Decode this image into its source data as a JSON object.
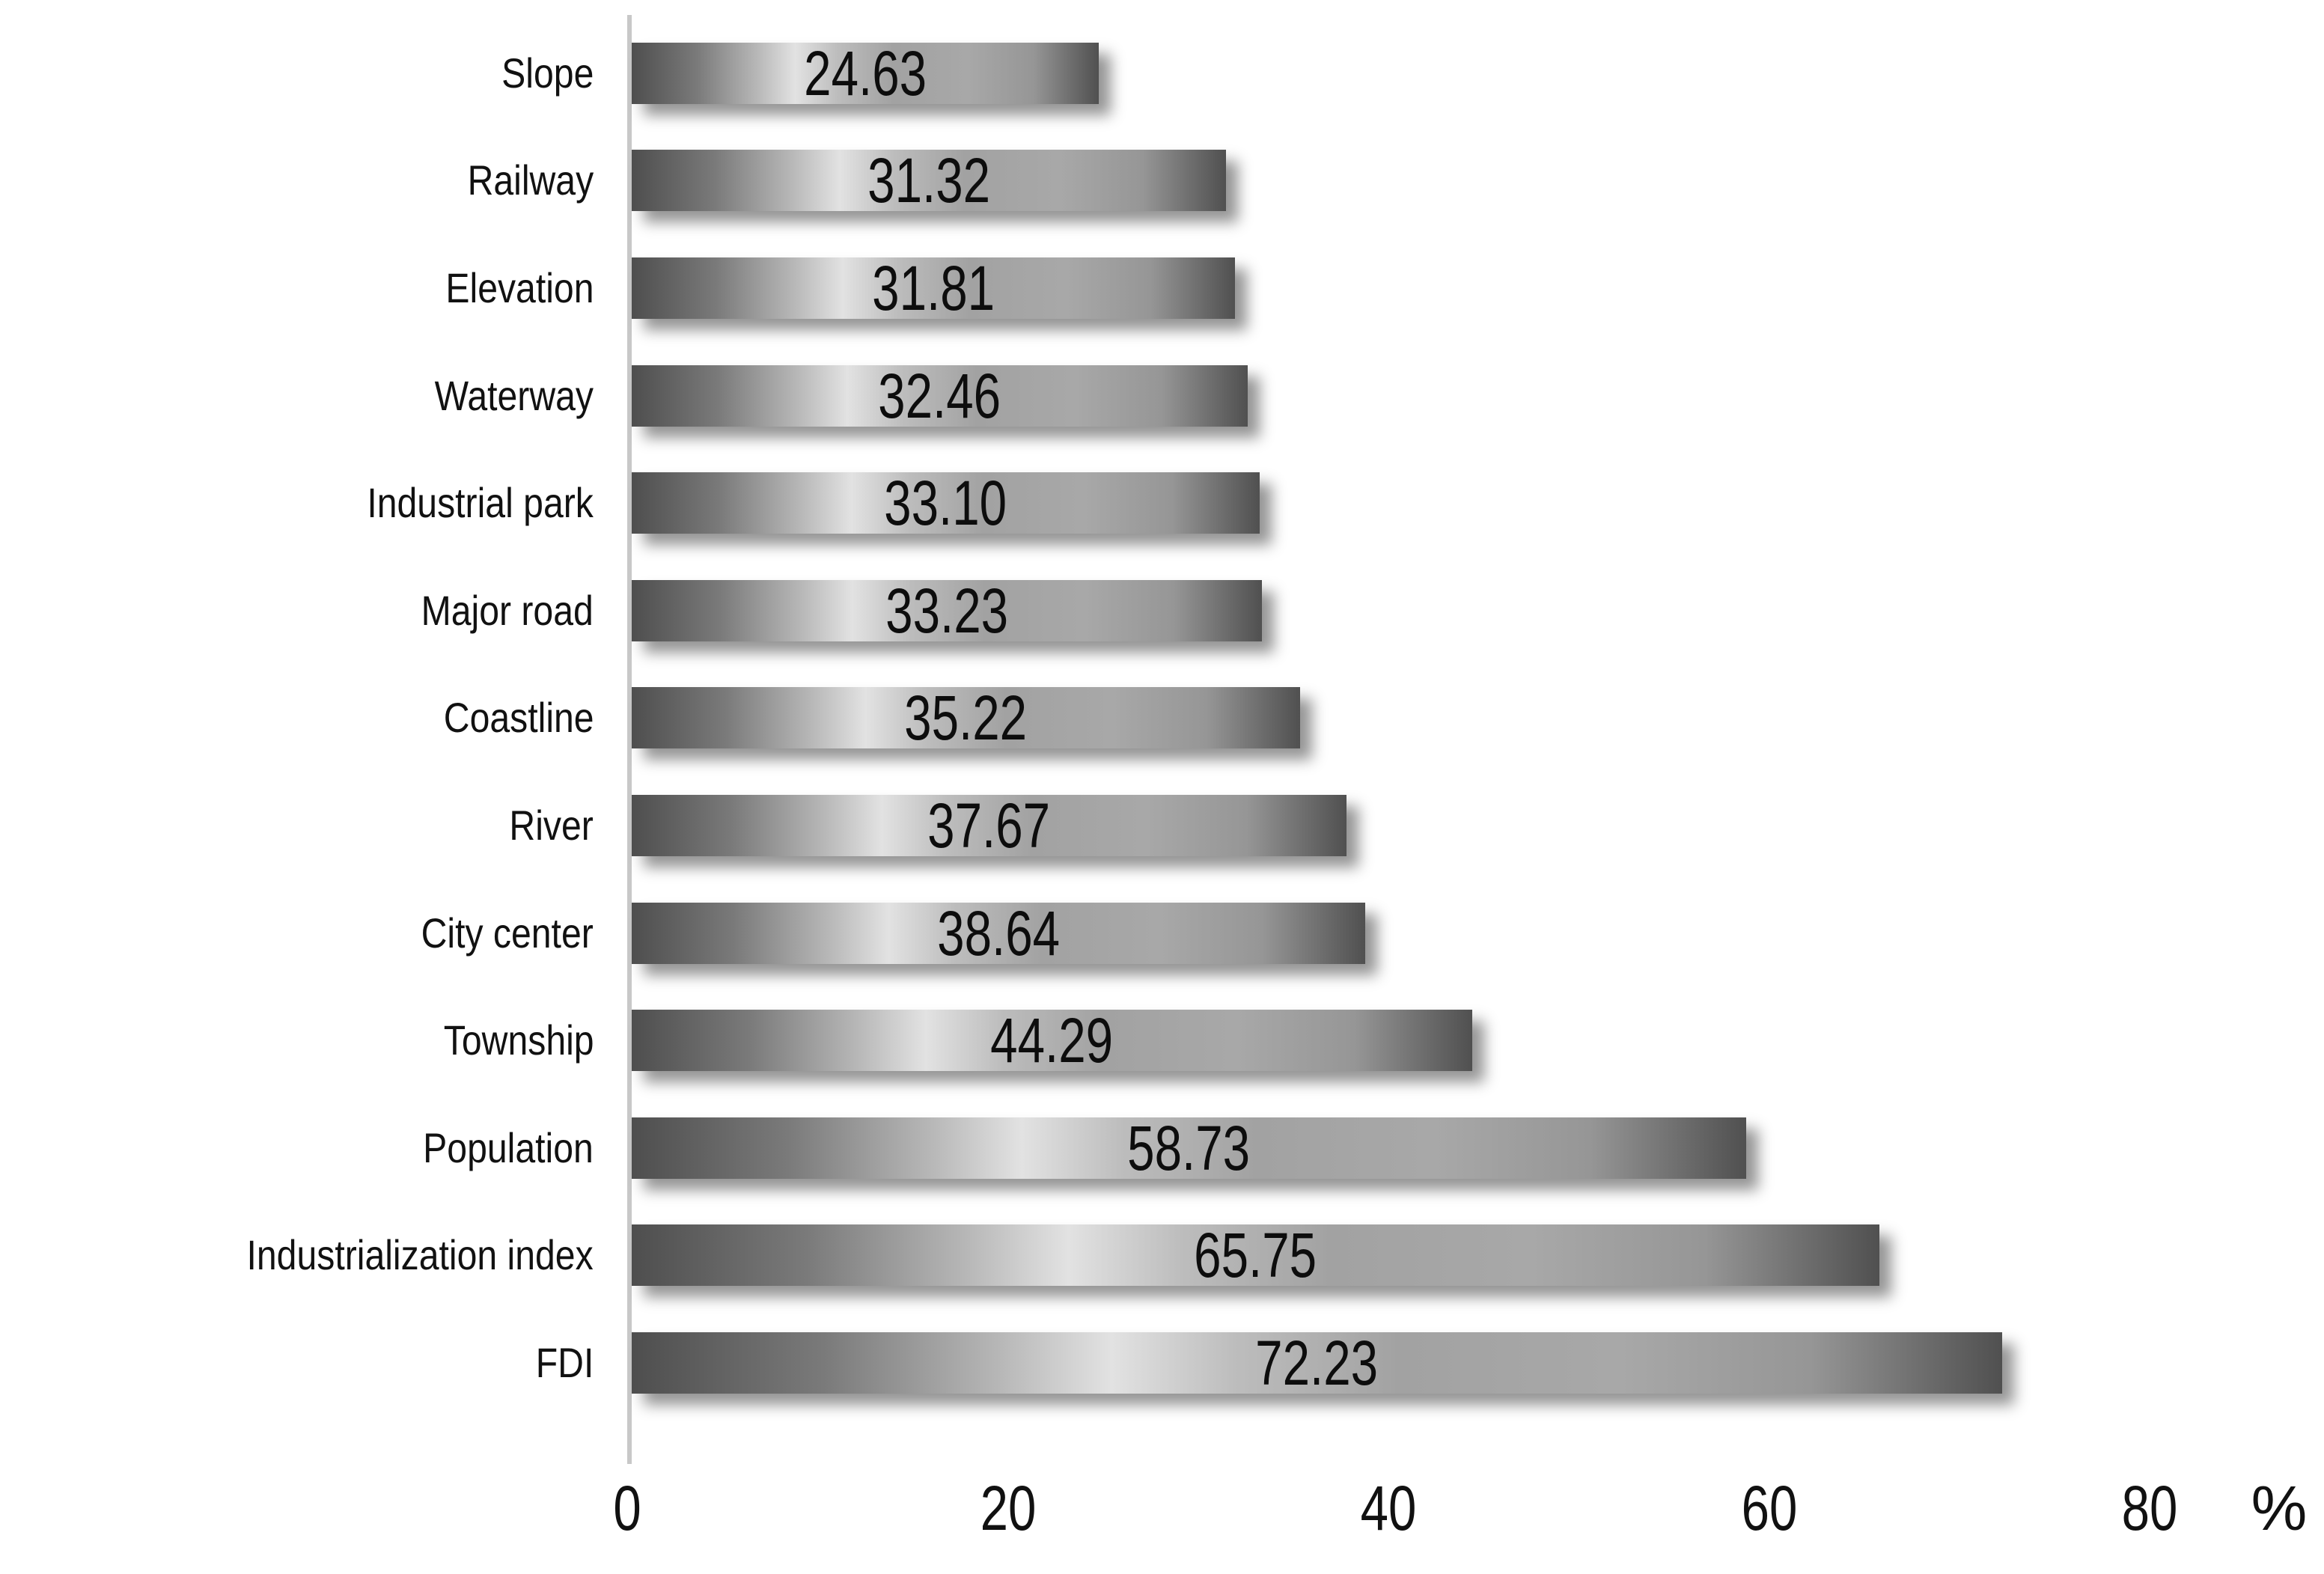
{
  "chart_data": {
    "type": "bar",
    "orientation": "horizontal",
    "title": "",
    "xlabel": "%",
    "ylabel": "",
    "xlim": [
      0,
      80
    ],
    "x_ticks": [
      "0",
      "20",
      "40",
      "60",
      "80"
    ],
    "grid": false,
    "legend": false,
    "categories": [
      "Slope",
      "Railway",
      "Elevation",
      "Waterway",
      "Industrial park",
      "Major road",
      "Coastline",
      "River",
      "City center",
      "Township",
      "Population",
      "Industrialization index",
      "FDI"
    ],
    "values": [
      24.63,
      31.32,
      31.81,
      32.46,
      33.1,
      33.23,
      35.22,
      37.67,
      38.64,
      44.29,
      58.73,
      65.75,
      72.23
    ],
    "bars": [
      {
        "category": "Slope",
        "value": 24.63,
        "label": "24.63"
      },
      {
        "category": "Railway",
        "value": 31.32,
        "label": "31.32"
      },
      {
        "category": "Elevation",
        "value": 31.81,
        "label": "31.81"
      },
      {
        "category": "Waterway",
        "value": 32.46,
        "label": "32.46"
      },
      {
        "category": "Industrial park",
        "value": 33.1,
        "label": "33.10"
      },
      {
        "category": "Major road",
        "value": 33.23,
        "label": "33.23"
      },
      {
        "category": "Coastline",
        "value": 35.22,
        "label": "35.22"
      },
      {
        "category": "River",
        "value": 37.67,
        "label": "37.67"
      },
      {
        "category": "City center",
        "value": 38.64,
        "label": "38.64"
      },
      {
        "category": "Township",
        "value": 44.29,
        "label": "44.29"
      },
      {
        "category": "Population",
        "value": 58.73,
        "label": "58.73"
      },
      {
        "category": "Industrialization index",
        "value": 65.75,
        "label": "65.75"
      },
      {
        "category": "FDI",
        "value": 72.23,
        "label": "72.23"
      }
    ]
  },
  "axis": {
    "unit_label": "%",
    "line_color": "#c8c8c8"
  },
  "colors": {
    "background": "#ffffff",
    "text": "#111111",
    "bar_gradient": [
      "#4e4e4e",
      "#e2e2e2",
      "#a2a2a2",
      "#505050"
    ],
    "shadow": "rgba(0,0,0,0.42)"
  }
}
